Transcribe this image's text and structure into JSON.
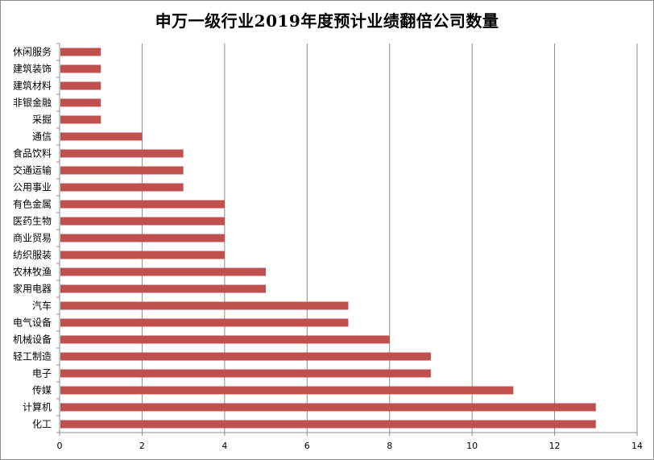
{
  "chart_data": {
    "type": "bar",
    "orientation": "horizontal",
    "title": "申万一级行业2019年度预计业绩翻倍公司数量",
    "xlabel": "",
    "ylabel": "",
    "xlim": [
      0,
      14
    ],
    "x_ticks": [
      0,
      2,
      4,
      6,
      8,
      10,
      12,
      14
    ],
    "grid": "vertical",
    "legend": "none",
    "bar_color": "#c0504d",
    "categories": [
      "休闲服务",
      "建筑装饰",
      "建筑材料",
      "非银金融",
      "采掘",
      "通信",
      "食品饮料",
      "交通运输",
      "公用事业",
      "有色金属",
      "医药生物",
      "商业贸易",
      "纺织服装",
      "农林牧渔",
      "家用电器",
      "汽车",
      "电气设备",
      "机械设备",
      "轻工制造",
      "电子",
      "传媒",
      "计算机",
      "化工"
    ],
    "values": [
      1,
      1,
      1,
      1,
      1,
      2,
      3,
      3,
      3,
      4,
      4,
      4,
      4,
      5,
      5,
      7,
      7,
      8,
      9,
      9,
      11,
      13,
      13
    ]
  }
}
